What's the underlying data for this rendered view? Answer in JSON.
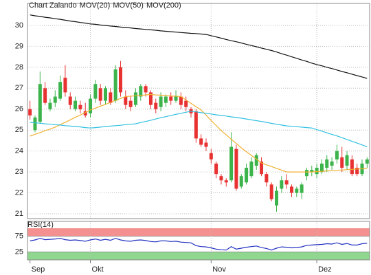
{
  "chart_data": [
    {
      "type": "candlestick",
      "title": "Chart Zalando",
      "title_color": "#e03c3c",
      "categories": [
        "Sep",
        null,
        null,
        null,
        null,
        null,
        null,
        null,
        null,
        null,
        null,
        null,
        "Okt",
        null,
        null,
        null,
        null,
        null,
        null,
        null,
        null,
        null,
        null,
        null,
        null,
        null,
        null,
        null,
        null,
        null,
        null,
        null,
        null,
        null,
        null,
        null,
        "Nov",
        null,
        null,
        null,
        null,
        null,
        null,
        null,
        null,
        null,
        null,
        null,
        null,
        null,
        null,
        null,
        null,
        null,
        null,
        null,
        null,
        "Dez",
        null,
        null,
        null,
        null,
        null,
        null,
        null,
        null,
        null,
        null
      ],
      "open": [
        26.0,
        25.0,
        25.4,
        27.0,
        26.0,
        26.3,
        26.5,
        27.5,
        26.6,
        26.0,
        26.2,
        25.9,
        25.8,
        26.5,
        27.0,
        26.4,
        26.8,
        26.4,
        28.0,
        26.6,
        26.4,
        26.2,
        26.6,
        27.1,
        26.8,
        26.3,
        26.1,
        26.3,
        26.6,
        26.4,
        26.6,
        26.4,
        26.0,
        25.9,
        24.6,
        24.4,
        23.9,
        23.4,
        22.8,
        22.6,
        22.6,
        24.1,
        22.3,
        22.5,
        22.8,
        23.3,
        23.5,
        22.9,
        22.4,
        21.4,
        22.2,
        22.6,
        22.3,
        22.0,
        22.0,
        22.8,
        23.0,
        22.9,
        23.0,
        23.2,
        23.3,
        23.6,
        23.7,
        23.3,
        23.6,
        23.2,
        22.9,
        23.4
      ],
      "high": [
        26.4,
        25.7,
        27.8,
        27.3,
        26.5,
        26.9,
        27.6,
        28.1,
        26.8,
        26.6,
        26.4,
        26.3,
        26.7,
        27.4,
        27.2,
        27.1,
        27.0,
        28.1,
        28.3,
        26.9,
        26.6,
        27.0,
        27.2,
        27.2,
        26.9,
        26.5,
        26.8,
        26.7,
        26.8,
        26.9,
        26.8,
        26.6,
        26.1,
        26.0,
        24.8,
        24.6,
        24.1,
        23.5,
        22.9,
        22.7,
        24.9,
        24.3,
        22.9,
        23.4,
        23.7,
        23.9,
        23.7,
        23.0,
        22.5,
        22.3,
        22.8,
        22.9,
        22.4,
        22.3,
        22.5,
        23.2,
        23.3,
        23.4,
        23.6,
        23.8,
        23.7,
        24.3,
        24.2,
        24.0,
        23.8,
        23.4,
        23.6,
        23.7
      ],
      "low": [
        25.5,
        24.9,
        25.3,
        26.2,
        25.9,
        26.1,
        26.4,
        26.6,
        26.0,
        25.9,
        25.8,
        25.6,
        25.6,
        26.3,
        26.2,
        26.2,
        26.2,
        26.3,
        26.6,
        26.0,
        25.9,
        26.1,
        26.4,
        26.6,
        26.0,
        25.8,
        25.9,
        26.1,
        26.2,
        26.3,
        26.0,
        25.9,
        25.6,
        24.4,
        24.2,
        24.0,
        23.4,
        22.7,
        22.4,
        22.3,
        22.5,
        22.1,
        22.2,
        22.4,
        22.7,
        23.1,
        22.8,
        22.3,
        21.6,
        21.1,
        22.0,
        22.2,
        21.8,
        21.8,
        21.7,
        22.6,
        22.8,
        22.7,
        22.9,
        23.0,
        23.1,
        23.4,
        23.0,
        23.1,
        22.8,
        22.8,
        22.8,
        23.2
      ],
      "close": [
        25.7,
        25.6,
        27.2,
        26.3,
        26.3,
        26.6,
        27.3,
        26.8,
        26.2,
        26.4,
        26.0,
        25.7,
        26.5,
        27.2,
        26.4,
        27.0,
        26.3,
        27.9,
        26.8,
        26.2,
        26.1,
        26.8,
        27.1,
        26.8,
        26.2,
        26.0,
        26.6,
        26.6,
        26.4,
        26.6,
        26.2,
        26.1,
        25.8,
        24.6,
        24.3,
        24.2,
        23.6,
        22.9,
        22.6,
        22.5,
        24.2,
        22.2,
        22.8,
        23.2,
        23.5,
        23.8,
        22.9,
        22.5,
        21.7,
        22.1,
        22.6,
        22.4,
        22.0,
        22.2,
        22.4,
        23.1,
        23.1,
        23.2,
        23.4,
        23.6,
        23.5,
        24.0,
        23.2,
        23.8,
        22.9,
        22.9,
        23.4,
        23.6
      ],
      "up_color": "#3cb44b",
      "down_color": "#e83232",
      "series": [
        {
          "name": "MOV(20)",
          "color": "#f0b030",
          "values": [
            24.71,
            24.8,
            24.88,
            24.97,
            25.05,
            25.14,
            25.26,
            25.37,
            25.49,
            25.61,
            25.72,
            25.84,
            25.96,
            26.05,
            26.14,
            26.23,
            26.32,
            26.42,
            26.51,
            26.6,
            26.62,
            26.64,
            26.66,
            26.68,
            26.7,
            26.68,
            26.67,
            26.65,
            26.63,
            26.62,
            26.6,
            26.44,
            26.28,
            26.12,
            25.96,
            25.71,
            25.46,
            25.22,
            24.97,
            24.77,
            24.56,
            24.36,
            24.15,
            23.97,
            23.79,
            23.61,
            23.43,
            23.34,
            23.26,
            23.17,
            23.09,
            23.0,
            23.0,
            23.0,
            23.0,
            23.0,
            23.0,
            23.02,
            23.03,
            23.05,
            23.06,
            23.08,
            23.09,
            23.11,
            23.12,
            23.14,
            23.15,
            23.17
          ]
        },
        {
          "name": "MOV(50)",
          "color": "#30c0e0",
          "values": [
            25.37,
            25.35,
            25.33,
            25.3,
            25.28,
            25.26,
            25.24,
            25.21,
            25.19,
            25.17,
            25.15,
            25.12,
            25.1,
            25.12,
            25.14,
            25.17,
            25.19,
            25.21,
            25.23,
            25.26,
            25.28,
            25.3,
            25.36,
            25.41,
            25.47,
            25.53,
            25.59,
            25.64,
            25.7,
            25.75,
            25.8,
            25.85,
            25.9,
            25.87,
            25.83,
            25.8,
            25.77,
            25.73,
            25.7,
            25.67,
            25.63,
            25.6,
            25.57,
            25.53,
            25.49,
            25.45,
            25.41,
            25.37,
            25.32,
            25.28,
            25.24,
            25.2,
            25.18,
            25.16,
            25.14,
            25.12,
            25.1,
            25.02,
            24.95,
            24.87,
            24.79,
            24.72,
            24.64,
            24.55,
            24.46,
            24.38,
            24.29,
            24.2
          ]
        },
        {
          "name": "MOV(200)",
          "color": "#111111",
          "values": [
            30.5,
            30.46,
            30.43,
            30.39,
            30.36,
            30.32,
            30.29,
            30.25,
            30.21,
            30.18,
            30.14,
            30.11,
            30.07,
            30.05,
            30.02,
            30.0,
            29.97,
            29.95,
            29.92,
            29.9,
            29.88,
            29.85,
            29.83,
            29.81,
            29.79,
            29.77,
            29.74,
            29.72,
            29.7,
            29.68,
            29.66,
            29.64,
            29.62,
            29.61,
            29.59,
            29.57,
            29.51,
            29.45,
            29.39,
            29.33,
            29.27,
            29.22,
            29.16,
            29.1,
            29.04,
            28.98,
            28.92,
            28.86,
            28.8,
            28.73,
            28.65,
            28.58,
            28.5,
            28.43,
            28.35,
            28.28,
            28.2,
            28.13,
            28.07,
            28.0,
            27.94,
            27.87,
            27.8,
            27.74,
            27.67,
            27.6,
            27.54,
            27.47
          ]
        }
      ],
      "ylim": [
        20.77,
        31.05
      ],
      "yticks": [
        21,
        22,
        23,
        24,
        25,
        26,
        27,
        28,
        29,
        30
      ],
      "grid": true
    },
    {
      "type": "line",
      "title": "RSI(14)",
      "color": "#2030c0",
      "values": [
        60,
        63,
        68,
        64,
        65,
        66,
        68,
        64,
        62,
        63,
        61,
        59,
        63,
        66,
        62,
        65,
        62,
        68,
        63,
        60,
        59,
        62,
        63,
        61,
        58,
        57,
        60,
        60,
        58,
        59,
        56,
        55,
        54,
        45,
        42,
        41,
        38,
        34,
        32,
        31,
        42,
        34,
        37,
        40,
        42,
        44,
        39,
        36,
        31,
        37,
        41,
        40,
        38,
        39,
        41,
        46,
        47,
        48,
        49,
        51,
        50,
        54,
        49,
        52,
        47,
        47,
        51,
        53
      ],
      "ylim": [
        0,
        100
      ],
      "yticks": [
        25,
        75
      ],
      "upper_band_color": "#f59090",
      "lower_band_color": "#8fd68f"
    }
  ]
}
